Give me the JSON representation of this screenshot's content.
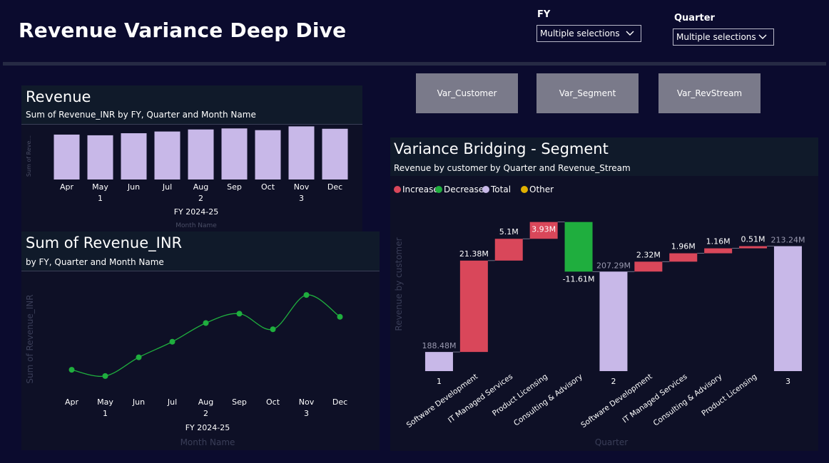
{
  "header": {
    "title": "Revenue Variance Deep Dive"
  },
  "slicers": {
    "fy": {
      "label": "FY",
      "value": "Multiple selections"
    },
    "quarter": {
      "label": "Quarter",
      "value": "Multiple selections"
    }
  },
  "buttons": {
    "customer": "Var_Customer",
    "segment": "Var_Segment",
    "revstream": "Var_RevStream"
  },
  "revenue_panel": {
    "title": "Revenue",
    "subtitle": "Sum of Revenue_INR by FY, Quarter and Month Name",
    "ylabel": "Sum of Reve...",
    "xlabel": "Month Name",
    "fy_label": "FY 2024-25"
  },
  "line_panel": {
    "title": "Sum of Revenue_INR",
    "subtitle": "by FY, Quarter and Month Name",
    "ylabel": "Sum of Revenue_INR",
    "xlabel": "Month Name",
    "fy_label": "FY 2024-25"
  },
  "waterfall_panel": {
    "title": "Variance Bridging - Segment",
    "subtitle": "Revenue by customer by Quarter and Revenue_Stream",
    "ylabel": "Revenue by customer",
    "xlabel": "Quarter",
    "legend": [
      {
        "label": "Increase",
        "color": "#d9475a"
      },
      {
        "label": "Decrease",
        "color": "#1fae3e"
      },
      {
        "label": "Total",
        "color": "#c8b8e8"
      },
      {
        "label": "Other",
        "color": "#e0b000"
      }
    ]
  },
  "chart_data": [
    {
      "type": "bar",
      "categories": [
        "Apr",
        "May",
        "Jun",
        "Jul",
        "Aug",
        "Sep",
        "Oct",
        "Nov",
        "Dec"
      ],
      "quarter_labels": [
        {
          "after": "May",
          "label": "1"
        },
        {
          "after": "Aug",
          "label": "2"
        },
        {
          "after": "Nov",
          "label": "3"
        }
      ],
      "values": [
        65.5,
        64.5,
        67.5,
        70.0,
        73.0,
        74.5,
        72.0,
        77.5,
        74.0
      ],
      "ylim": [
        0,
        80
      ],
      "color": "#c8b8e8"
    },
    {
      "type": "line",
      "categories": [
        "Apr",
        "May",
        "Jun",
        "Jul",
        "Aug",
        "Sep",
        "Oct",
        "Nov",
        "Dec"
      ],
      "values": [
        65.5,
        64.5,
        67.5,
        70.0,
        73.0,
        74.5,
        72.0,
        77.5,
        74.0
      ],
      "ylim": [
        63,
        79
      ],
      "color": "#1fae3e"
    },
    {
      "type": "waterfall",
      "steps": [
        {
          "label": "1",
          "kind": "total",
          "value": 188.48,
          "text": "188.48M"
        },
        {
          "label": "Software Development",
          "kind": "increase",
          "value": 21.38,
          "text": "21.38M"
        },
        {
          "label": "IT Managed Services",
          "kind": "increase",
          "value": 5.1,
          "text": "5.1M"
        },
        {
          "label": "Product Licensing",
          "kind": "increase",
          "value": 3.93,
          "text": "3.93M"
        },
        {
          "label": "Consulting & Advisory",
          "kind": "decrease",
          "value": -11.61,
          "text": "-11.61M"
        },
        {
          "label": "2",
          "kind": "total",
          "value": 207.29,
          "text": "207.29M"
        },
        {
          "label": "Software Development",
          "kind": "increase",
          "value": 2.32,
          "text": "2.32M"
        },
        {
          "label": "IT Managed Services",
          "kind": "increase",
          "value": 1.96,
          "text": "1.96M"
        },
        {
          "label": "Consulting & Advisory",
          "kind": "increase",
          "value": 1.16,
          "text": "1.16M"
        },
        {
          "label": "Product Licensing",
          "kind": "increase",
          "value": 0.51,
          "text": "0.51M"
        },
        {
          "label": "3",
          "kind": "total",
          "value": 213.24,
          "text": "213.24M"
        }
      ],
      "ylim": [
        184,
        223
      ],
      "colors": {
        "increase": "#d9475a",
        "decrease": "#1fae3e",
        "total": "#c8b8e8"
      }
    }
  ]
}
